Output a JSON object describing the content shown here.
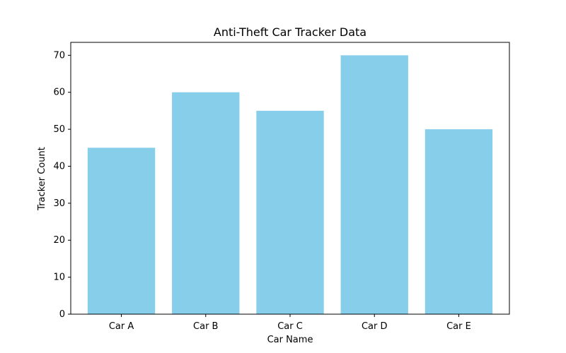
{
  "chart_data": {
    "type": "bar",
    "title": "Anti-Theft Car Tracker Data",
    "xlabel": "Car Name",
    "ylabel": "Tracker Count",
    "categories": [
      "Car A",
      "Car B",
      "Car C",
      "Car D",
      "Car E"
    ],
    "values": [
      45,
      60,
      55,
      70,
      50
    ],
    "ylim": [
      0,
      73.5
    ],
    "yticks": [
      0,
      10,
      20,
      30,
      40,
      50,
      60,
      70
    ],
    "bar_color": "#87ceeb",
    "grid": false,
    "legend": "none"
  }
}
